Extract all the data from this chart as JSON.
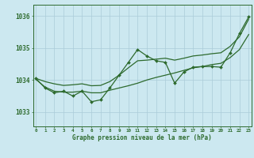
{
  "background_color": "#cce8f0",
  "grid_color": "#aaccd8",
  "line_color": "#2d6a2d",
  "x_labels": [
    "0",
    "1",
    "2",
    "3",
    "4",
    "5",
    "6",
    "7",
    "8",
    "9",
    "10",
    "11",
    "12",
    "13",
    "14",
    "15",
    "16",
    "17",
    "18",
    "19",
    "20",
    "21",
    "22",
    "23"
  ],
  "xlabel": "Graphe pression niveau de la mer (hPa)",
  "yticks": [
    1033,
    1034,
    1035,
    1036
  ],
  "ylim": [
    1032.55,
    1036.35
  ],
  "xlim": [
    -0.3,
    23.3
  ],
  "smooth_upper": [
    1034.05,
    1033.95,
    1033.88,
    1033.83,
    1033.85,
    1033.88,
    1033.82,
    1033.83,
    1033.95,
    1034.15,
    1034.38,
    1034.6,
    1034.62,
    1034.65,
    1034.68,
    1034.62,
    1034.68,
    1034.75,
    1034.78,
    1034.82,
    1034.85,
    1035.05,
    1035.35,
    1035.9
  ],
  "smooth_lower": [
    1034.02,
    1033.78,
    1033.65,
    1033.62,
    1033.62,
    1033.65,
    1033.6,
    1033.6,
    1033.68,
    1033.75,
    1033.82,
    1033.9,
    1034.0,
    1034.08,
    1034.15,
    1034.22,
    1034.3,
    1034.38,
    1034.42,
    1034.48,
    1034.52,
    1034.7,
    1034.95,
    1035.42
  ],
  "jagged": [
    1034.05,
    1033.75,
    1033.6,
    1033.65,
    1033.5,
    1033.65,
    1033.32,
    1033.38,
    1033.75,
    1034.15,
    1034.55,
    1034.95,
    1034.75,
    1034.6,
    1034.55,
    1033.9,
    1034.25,
    1034.4,
    1034.42,
    1034.42,
    1034.4,
    1034.85,
    1035.45,
    1035.97
  ],
  "xlabel_fontsize": 5.5,
  "ytick_fontsize": 5.5,
  "xtick_fontsize": 4.2
}
